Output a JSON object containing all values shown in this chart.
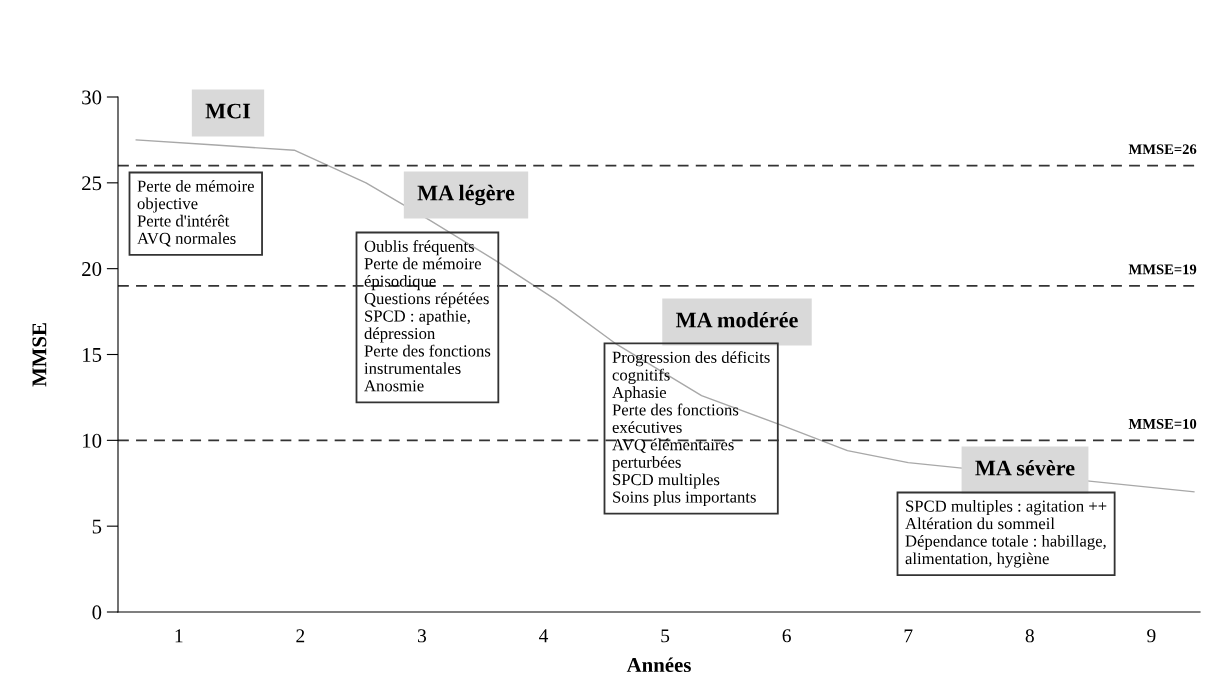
{
  "chart_data": {
    "type": "line",
    "xlabel": "Années",
    "ylabel": "MMSE",
    "xlim": [
      0.5,
      9.4
    ],
    "xticks": [
      1,
      2,
      3,
      4,
      5,
      6,
      7,
      8,
      9
    ],
    "ylim": [
      0,
      30
    ],
    "yticks": [
      0,
      5,
      10,
      15,
      20,
      25,
      30
    ],
    "x": [
      0.65,
      1.3,
      1.95,
      2.54,
      3.07,
      3.6,
      4.1,
      4.6,
      5.3,
      5.95,
      6.5,
      7.0,
      9.35
    ],
    "series": [
      {
        "color": "#a8a8a8",
        "values": [
          27.5,
          27.2,
          26.9,
          25.0,
          22.8,
          20.5,
          18.2,
          15.6,
          12.6,
          10.9,
          9.4,
          8.7,
          7.0
        ]
      }
    ],
    "marker": "none",
    "line_style": "solid",
    "grid": false,
    "legend": false,
    "ref_lines": [
      {
        "axis": "y",
        "value": 26,
        "label": "MMSE=26",
        "color": "#333333",
        "line_style": "dashed"
      },
      {
        "axis": "y",
        "value": 19,
        "label": "MMSE=19",
        "color": "#333333",
        "line_style": "dashed"
      },
      {
        "axis": "y",
        "value": 10,
        "label": "MMSE=10",
        "color": "#333333",
        "line_style": "dashed"
      }
    ],
    "annotations": [
      "MCI",
      "Perte de mémoire\nobjective\nPerte d'intérêt\nAVQ normales",
      "MA légère",
      "Oublis fréquents\nPerte de mémoire\népisodique\nQuestions répétées\nSPCD : apathie,\ndépression\nPerte des fonctions\ninstrumentales\nAnosmie",
      "MA modérée",
      "Progression des déficits\ncognitifs\nAphasie\nPerte des fonctions\nexécutives\nAVQ élémentaires\nperturbées\nSPCD multiples\nSoins plus importants",
      "MA sévère",
      "SPCD multiples : agitation ++\nAltération du sommeil\nDépendance totale : habillage,\nalimentation, hygiène"
    ]
  }
}
